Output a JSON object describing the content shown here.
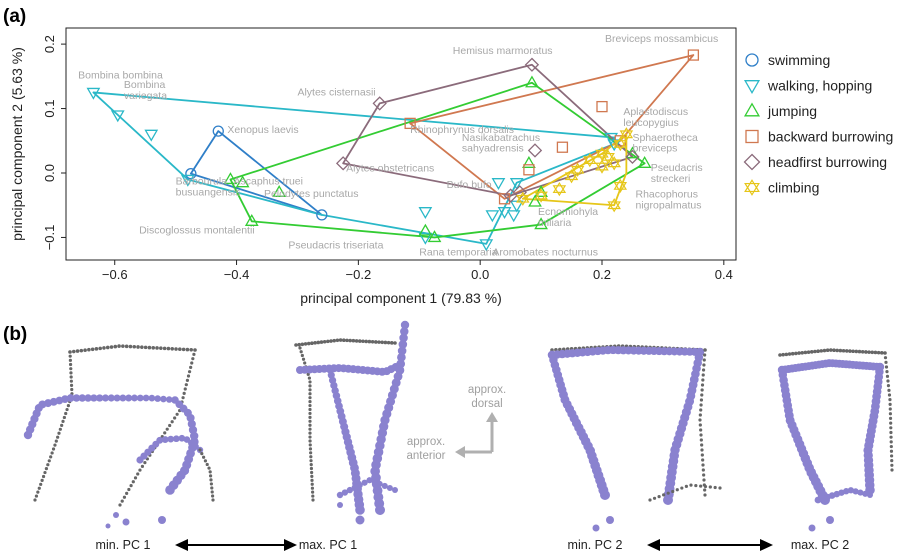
{
  "panel_a_label": "(a)",
  "panel_b_label": "(b)",
  "chart_data": {
    "type": "scatter",
    "title": "",
    "xlabel": "principal component 1 (79.83 %)",
    "ylabel": "principal component 2 (5.63 %)",
    "xlim": [
      -0.68,
      0.42
    ],
    "ylim": [
      -0.135,
      0.225
    ],
    "xticks": [
      -0.6,
      -0.4,
      -0.2,
      0.0,
      0.2,
      0.4
    ],
    "xtick_labels": [
      "−0.6",
      "−0.4",
      "−0.2",
      "0.0",
      "0.2",
      "0.4"
    ],
    "yticks": [
      -0.1,
      0.0,
      0.1,
      0.2
    ],
    "ytick_labels": [
      "−0.1",
      "0.0",
      "0.1",
      "0.2"
    ],
    "grid": false,
    "legend_position": "right",
    "series": [
      {
        "name": "swimming",
        "marker": "circle",
        "color": "#2f7fc8",
        "points": [
          [
            -0.43,
            0.065
          ],
          [
            -0.475,
            -0.001
          ],
          [
            -0.26,
            -0.065
          ]
        ],
        "hull": [
          [
            -0.43,
            0.065
          ],
          [
            -0.26,
            -0.065
          ],
          [
            -0.475,
            -0.001
          ]
        ]
      },
      {
        "name": "walking, hopping",
        "marker": "triangle-down",
        "color": "#2ab8c8",
        "points": [
          [
            -0.635,
            0.125
          ],
          [
            -0.595,
            0.09
          ],
          [
            -0.54,
            0.06
          ],
          [
            -0.48,
            -0.01
          ],
          [
            -0.09,
            -0.1
          ],
          [
            0.01,
            -0.11
          ],
          [
            0.03,
            -0.015
          ],
          [
            0.04,
            -0.06
          ],
          [
            0.055,
            -0.065
          ],
          [
            0.06,
            -0.05
          ],
          [
            0.06,
            -0.015
          ],
          [
            -0.09,
            -0.06
          ],
          [
            0.02,
            -0.065
          ],
          [
            0.215,
            0.055
          ],
          [
            0.22,
            0.045
          ]
        ],
        "hull": [
          [
            -0.635,
            0.125
          ],
          [
            0.22,
            0.055
          ],
          [
            0.22,
            0.045
          ],
          [
            0.06,
            -0.015
          ],
          [
            0.01,
            -0.11
          ],
          [
            -0.26,
            -0.065
          ],
          [
            -0.48,
            -0.01
          ]
        ]
      },
      {
        "name": "jumping",
        "marker": "triangle-up",
        "color": "#33cc33",
        "points": [
          [
            -0.41,
            -0.01
          ],
          [
            -0.39,
            -0.015
          ],
          [
            -0.375,
            -0.075
          ],
          [
            -0.33,
            -0.03
          ],
          [
            -0.09,
            -0.09
          ],
          [
            -0.075,
            -0.1
          ],
          [
            0.085,
            0.14
          ],
          [
            0.08,
            0.015
          ],
          [
            0.1,
            -0.03
          ],
          [
            0.09,
            -0.045
          ],
          [
            0.1,
            -0.08
          ],
          [
            0.27,
            0.015
          ],
          [
            0.25,
            0.03
          ]
        ],
        "hull": [
          [
            -0.41,
            -0.01
          ],
          [
            0.085,
            0.14
          ],
          [
            0.27,
            0.015
          ],
          [
            0.1,
            -0.08
          ],
          [
            -0.075,
            -0.1
          ],
          [
            -0.375,
            -0.075
          ]
        ]
      },
      {
        "name": "backward burrowing",
        "marker": "square",
        "color": "#d07850",
        "points": [
          [
            -0.115,
            0.077
          ],
          [
            0.2,
            0.103
          ],
          [
            0.135,
            0.04
          ],
          [
            0.35,
            0.183
          ],
          [
            0.23,
            0.05
          ],
          [
            0.04,
            -0.04
          ],
          [
            0.08,
            0.005
          ]
        ],
        "hull": [
          [
            -0.115,
            0.077
          ],
          [
            0.35,
            0.183
          ],
          [
            0.23,
            0.05
          ],
          [
            0.04,
            -0.04
          ]
        ]
      },
      {
        "name": "headfirst burrowing",
        "marker": "diamond",
        "color": "#8b6b7b",
        "points": [
          [
            -0.225,
            0.015
          ],
          [
            -0.165,
            0.108
          ],
          [
            0.085,
            0.168
          ],
          [
            0.25,
            0.025
          ],
          [
            0.065,
            -0.03
          ],
          [
            0.09,
            0.035
          ],
          [
            0.05,
            -0.035
          ]
        ],
        "hull": [
          [
            -0.225,
            0.015
          ],
          [
            -0.165,
            0.108
          ],
          [
            0.085,
            0.168
          ],
          [
            0.25,
            0.025
          ],
          [
            0.05,
            -0.035
          ]
        ]
      },
      {
        "name": "climbing",
        "marker": "star",
        "color": "#e6c619",
        "points": [
          [
            0.07,
            -0.04
          ],
          [
            0.1,
            -0.035
          ],
          [
            0.13,
            -0.025
          ],
          [
            0.15,
            -0.005
          ],
          [
            0.16,
            0.005
          ],
          [
            0.18,
            0.02
          ],
          [
            0.2,
            0.03
          ],
          [
            0.21,
            0.025
          ],
          [
            0.22,
            0.015
          ],
          [
            0.23,
            -0.02
          ],
          [
            0.22,
            -0.05
          ],
          [
            0.23,
            0.045
          ],
          [
            0.24,
            0.06
          ],
          [
            0.2,
            0.01
          ]
        ],
        "hull": [
          [
            0.07,
            -0.04
          ],
          [
            0.2,
            0.03
          ],
          [
            0.24,
            0.06
          ],
          [
            0.24,
            0.0
          ],
          [
            0.22,
            -0.05
          ]
        ]
      }
    ],
    "annotations": [
      {
        "text": "Bombina bombina",
        "x": -0.66,
        "y": 0.147
      },
      {
        "text": "Bombina",
        "x": -0.585,
        "y": 0.132
      },
      {
        "text": "variegata",
        "x": -0.585,
        "y": 0.115
      },
      {
        "text": "Xenopus laevis",
        "x": -0.415,
        "y": 0.062
      },
      {
        "text": "Barbourula",
        "x": -0.5,
        "y": -0.018
      },
      {
        "text": "busuangensis",
        "x": -0.5,
        "y": -0.035
      },
      {
        "text": "Ascaphus truei",
        "x": -0.405,
        "y": -0.018
      },
      {
        "text": "Pelodytes punctatus",
        "x": -0.355,
        "y": -0.037
      },
      {
        "text": "Discoglossus montalentii",
        "x": -0.56,
        "y": -0.094
      },
      {
        "text": "Pseudacris triseriata",
        "x": -0.315,
        "y": -0.117
      },
      {
        "text": "Rana temporaria",
        "x": -0.1,
        "y": -0.128
      },
      {
        "text": "Aromobates nocturnus",
        "x": 0.02,
        "y": -0.128
      },
      {
        "text": "Alytes cisternasii",
        "x": -0.3,
        "y": 0.12
      },
      {
        "text": "Alytes obstetricans",
        "x": -0.22,
        "y": 0.002
      },
      {
        "text": "Rhinophrynus dorsalis",
        "x": -0.115,
        "y": 0.062
      },
      {
        "text": "Hemisus marmoratus",
        "x": -0.045,
        "y": 0.185
      },
      {
        "text": "Nasikabatrachus",
        "x": -0.03,
        "y": 0.05
      },
      {
        "text": "sahyadrensis",
        "x": -0.03,
        "y": 0.033
      },
      {
        "text": "Bufo bufo",
        "x": -0.055,
        "y": -0.023
      },
      {
        "text": "Ecnomiohyla",
        "x": 0.095,
        "y": -0.065
      },
      {
        "text": "miliaria",
        "x": 0.095,
        "y": -0.082
      },
      {
        "text": "Breviceps mossambicus",
        "x": 0.205,
        "y": 0.203
      },
      {
        "text": "Aplastodiscus",
        "x": 0.235,
        "y": 0.09
      },
      {
        "text": "leucopygius",
        "x": 0.235,
        "y": 0.073
      },
      {
        "text": "Sphaerotheca",
        "x": 0.25,
        "y": 0.05
      },
      {
        "text": "breviceps",
        "x": 0.25,
        "y": 0.033
      },
      {
        "text": "Pseudacris",
        "x": 0.28,
        "y": 0.003
      },
      {
        "text": "streckeri",
        "x": 0.28,
        "y": -0.014
      },
      {
        "text": "Rhacophorus",
        "x": 0.255,
        "y": -0.038
      },
      {
        "text": "nigropalmatus",
        "x": 0.255,
        "y": -0.055
      }
    ]
  },
  "panel_b": {
    "approx_dorsal_line1": "approx.",
    "approx_dorsal_line2": "dorsal",
    "approx_anterior_line1": "approx.",
    "approx_anterior_line2": "anterior",
    "min_pc1": "min. PC 1",
    "max_pc1": "max. PC 1",
    "min_pc2": "min. PC 2",
    "max_pc2": "max. PC 2"
  },
  "colors": {
    "purple_bead": "#8a82cf",
    "gray_bead": "#666666"
  }
}
